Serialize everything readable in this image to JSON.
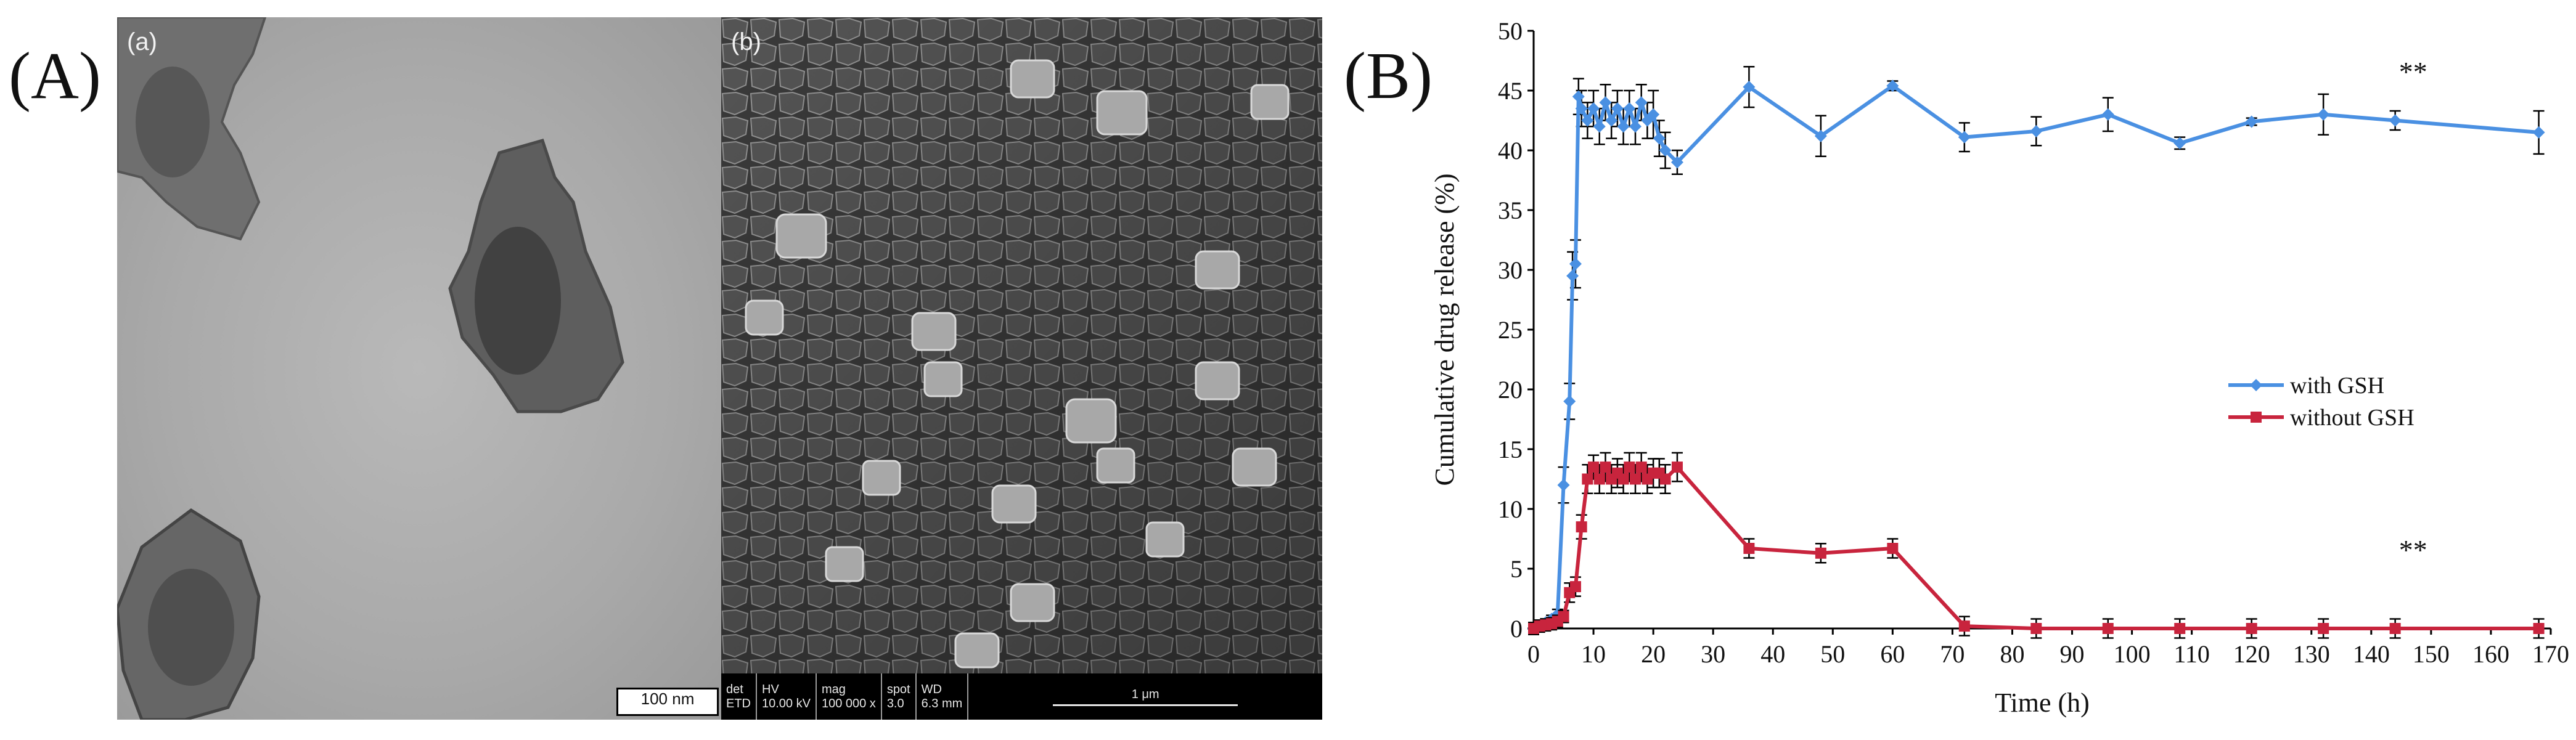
{
  "panel_a": {
    "label": "(A)",
    "tem": {
      "label": "(a)",
      "scale_bar": "100 nm"
    },
    "sem": {
      "label": "(b)",
      "info_headers": [
        "det",
        "HV",
        "mag",
        "spot",
        "WD"
      ],
      "info_values": [
        "ETD",
        "10.00 kV",
        "100 000 x",
        "3.0",
        "6.3 mm"
      ],
      "scale_bar": "1 μm"
    }
  },
  "panel_b": {
    "label": "(B)"
  },
  "chart_data": {
    "type": "line",
    "xlabel": "Time (h)",
    "ylabel": "Cumulative drug release (%)",
    "xlim": [
      0,
      170
    ],
    "ylim": [
      0,
      50
    ],
    "xticks": [
      0,
      10,
      20,
      30,
      40,
      50,
      60,
      70,
      80,
      90,
      100,
      110,
      120,
      130,
      140,
      150,
      160,
      170
    ],
    "yticks": [
      0,
      5,
      10,
      15,
      20,
      25,
      30,
      35,
      40,
      45,
      50
    ],
    "grid": false,
    "legend_position": "center-right",
    "series": [
      {
        "name": "with GSH",
        "color": "#4a90e2",
        "marker": "diamond",
        "x": [
          0,
          1,
          2,
          3,
          4,
          5,
          6,
          6.5,
          7,
          7.5,
          8,
          9,
          10,
          11,
          12,
          13,
          14,
          15,
          16,
          17,
          18,
          19,
          20,
          21,
          22,
          24,
          36,
          48,
          60,
          72,
          84,
          96,
          108,
          120,
          132,
          144,
          168
        ],
        "y": [
          0,
          0.2,
          0.5,
          0.8,
          1.2,
          12,
          19,
          29.5,
          30.5,
          44.5,
          43.5,
          42.5,
          43.5,
          42,
          44,
          42.5,
          43.5,
          42,
          43.5,
          42,
          44,
          42.5,
          43,
          41,
          40,
          39,
          45.3,
          41.2,
          45.4,
          41.1,
          41.6,
          43,
          40.6,
          42.4,
          43,
          42.5,
          41.5
        ],
        "err": [
          0,
          0.3,
          0.3,
          0.3,
          0.4,
          1.5,
          1.5,
          2,
          2,
          1.5,
          1.5,
          1.5,
          1.5,
          1.5,
          1.5,
          1.5,
          1.5,
          1.5,
          1.5,
          1.5,
          1.5,
          1.5,
          2,
          1.5,
          1.5,
          1,
          1.7,
          1.7,
          0.4,
          1.2,
          1.2,
          1.4,
          0.5,
          0.3,
          1.7,
          0.8,
          1.8
        ]
      },
      {
        "name": "without GSH",
        "color": "#c8243d",
        "marker": "square",
        "x": [
          0,
          1,
          2,
          3,
          4,
          5,
          6,
          7,
          8,
          9,
          10,
          11,
          12,
          13,
          14,
          15,
          16,
          17,
          18,
          19,
          20,
          21,
          22,
          24,
          36,
          48,
          60,
          72,
          84,
          96,
          108,
          120,
          132,
          144,
          168
        ],
        "y": [
          0,
          0.2,
          0.3,
          0.4,
          0.6,
          1,
          3,
          3.5,
          8.5,
          12.5,
          13.5,
          12.5,
          13.5,
          12.5,
          13,
          12.5,
          13.5,
          12.5,
          13.5,
          12.5,
          13,
          13,
          12.5,
          13.5,
          6.7,
          6.3,
          6.7,
          0.2,
          0,
          0,
          0,
          0,
          0,
          0,
          0
        ],
        "err": [
          0.5,
          0.5,
          0.5,
          0.5,
          0.5,
          0.5,
          0.8,
          0.8,
          1,
          1.2,
          1,
          1.2,
          1.2,
          1.2,
          1.2,
          1.2,
          1.2,
          1.2,
          1.2,
          1.2,
          1.2,
          1.2,
          1.2,
          1.2,
          0.8,
          0.8,
          0.8,
          0.8,
          0.8,
          0.8,
          0.8,
          0.8,
          0.8,
          0.8,
          0.8
        ]
      }
    ],
    "annotations": [
      {
        "text": "**",
        "x": 147,
        "y": 46.5
      },
      {
        "text": "**",
        "x": 147,
        "y": 6.5
      }
    ]
  }
}
